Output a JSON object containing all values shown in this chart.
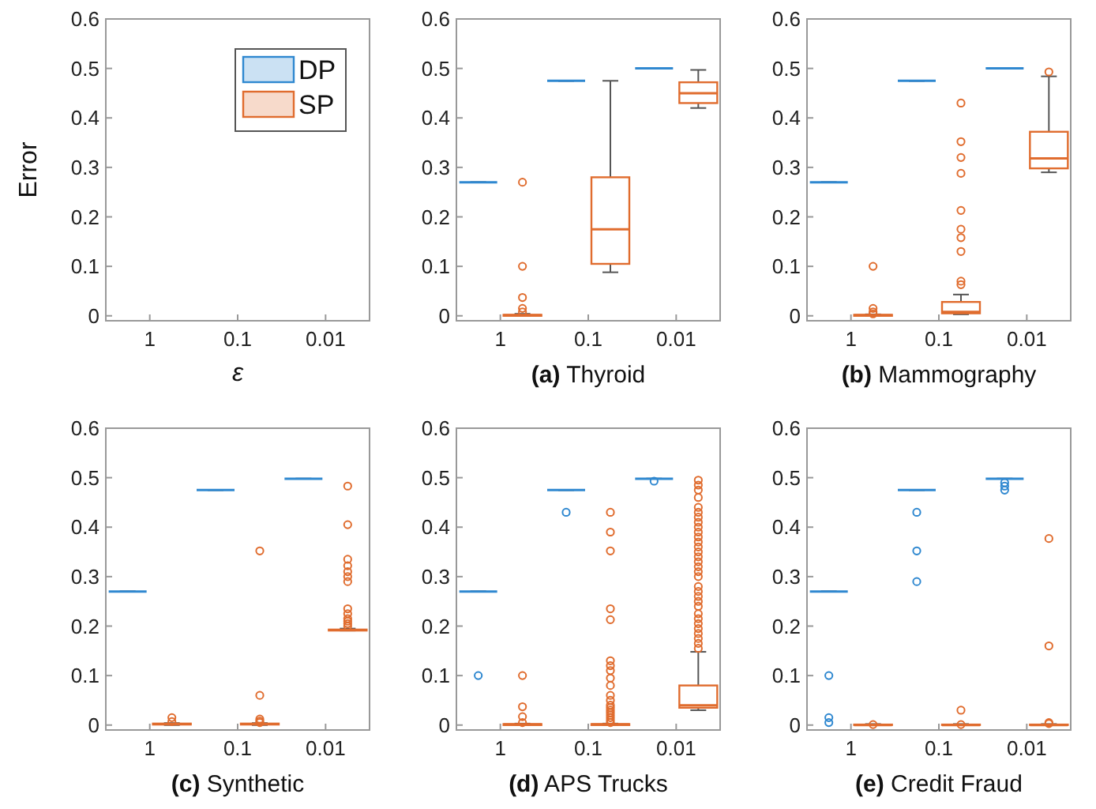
{
  "chart_data": [
    {
      "type": "box",
      "xlabel": "ε",
      "ylabel": "Error",
      "categories": [
        "1",
        "0.1",
        "0.01"
      ],
      "ylim": [
        -0.01,
        0.6
      ],
      "yticks": [
        0,
        0.1,
        0.2,
        0.3,
        0.4,
        0.5,
        0.6
      ],
      "legend": "top right",
      "series": [
        {
          "name": "DP",
          "color": "#2f88d0",
          "boxes": [
            null,
            null,
            null
          ]
        },
        {
          "name": "SP",
          "color": "#e06c2e",
          "boxes": [
            null,
            null,
            null
          ]
        }
      ]
    },
    {
      "type": "box",
      "title": "(a) Thyroid",
      "categories": [
        "1",
        "0.1",
        "0.01"
      ],
      "ylim": [
        -0.01,
        0.6
      ],
      "yticks": [
        0,
        0.1,
        0.2,
        0.3,
        0.4,
        0.5,
        0.6
      ],
      "series": [
        {
          "color": "#2f88d0",
          "boxes": [
            {
              "low": 0.27,
              "q1": 0.27,
              "median": 0.27,
              "q3": 0.27,
              "high": 0.27
            },
            {
              "low": 0.475,
              "q1": 0.475,
              "median": 0.475,
              "q3": 0.475,
              "high": 0.475
            },
            {
              "low": 0.5,
              "q1": 0.5,
              "median": 0.5,
              "q3": 0.5,
              "high": 0.5
            }
          ]
        },
        {
          "color": "#e06c2e",
          "boxes": [
            {
              "low": 0,
              "q1": 0,
              "median": 0.001,
              "q3": 0.002,
              "high": 0.004,
              "outliers": [
                0.008,
                0.015,
                0.037,
                0.1,
                0.27
              ]
            },
            {
              "low": 0.088,
              "q1": 0.105,
              "median": 0.175,
              "q3": 0.28,
              "high": 0.475
            },
            {
              "low": 0.42,
              "q1": 0.43,
              "median": 0.45,
              "q3": 0.472,
              "high": 0.497
            }
          ]
        }
      ]
    },
    {
      "type": "box",
      "title": "(b) Mammography",
      "categories": [
        "1",
        "0.1",
        "0.01"
      ],
      "ylim": [
        -0.01,
        0.6
      ],
      "yticks": [
        0,
        0.1,
        0.2,
        0.3,
        0.4,
        0.5,
        0.6
      ],
      "series": [
        {
          "color": "#2f88d0",
          "boxes": [
            {
              "low": 0.27,
              "q1": 0.27,
              "median": 0.27,
              "q3": 0.27,
              "high": 0.27
            },
            {
              "low": 0.475,
              "q1": 0.475,
              "median": 0.475,
              "q3": 0.475,
              "high": 0.475
            },
            {
              "low": 0.5,
              "q1": 0.5,
              "median": 0.5,
              "q3": 0.5,
              "high": 0.5
            }
          ]
        },
        {
          "color": "#e06c2e",
          "boxes": [
            {
              "low": 0,
              "q1": 0,
              "median": 0.001,
              "q3": 0.002,
              "high": 0.003,
              "outliers": [
                0.004,
                0.008,
                0.015,
                0.1
              ]
            },
            {
              "low": 0.003,
              "q1": 0.005,
              "median": 0.008,
              "q3": 0.028,
              "high": 0.043,
              "outliers": [
                0.063,
                0.07,
                0.13,
                0.158,
                0.175,
                0.213,
                0.288,
                0.32,
                0.352,
                0.43
              ]
            },
            {
              "low": 0.29,
              "q1": 0.298,
              "median": 0.318,
              "q3": 0.372,
              "high": 0.484,
              "outliers": [
                0.493
              ]
            }
          ]
        }
      ]
    },
    {
      "type": "box",
      "title": "(c) Synthetic",
      "categories": [
        "1",
        "0.1",
        "0.01"
      ],
      "ylim": [
        -0.01,
        0.6
      ],
      "yticks": [
        0,
        0.1,
        0.2,
        0.3,
        0.4,
        0.5,
        0.6
      ],
      "series": [
        {
          "color": "#2f88d0",
          "boxes": [
            {
              "low": 0.27,
              "q1": 0.27,
              "median": 0.27,
              "q3": 0.27,
              "high": 0.27
            },
            {
              "low": 0.475,
              "q1": 0.475,
              "median": 0.475,
              "q3": 0.475,
              "high": 0.475
            },
            {
              "low": 0.498,
              "q1": 0.498,
              "median": 0.498,
              "q3": 0.498,
              "high": 0.498
            }
          ]
        },
        {
          "color": "#e06c2e",
          "boxes": [
            {
              "low": 0,
              "q1": 0.001,
              "median": 0.002,
              "q3": 0.003,
              "high": 0.004,
              "outliers": [
                0.007,
                0.015
              ]
            },
            {
              "low": 0,
              "q1": 0.001,
              "median": 0.002,
              "q3": 0.003,
              "high": 0.004,
              "outliers": [
                0.005,
                0.008,
                0.012,
                0.06,
                0.352
              ]
            },
            {
              "low": 0.191,
              "q1": 0.191,
              "median": 0.192,
              "q3": 0.193,
              "high": 0.195,
              "outliers": [
                0.2,
                0.205,
                0.21,
                0.215,
                0.225,
                0.235,
                0.29,
                0.3,
                0.31,
                0.322,
                0.335,
                0.405,
                0.483
              ]
            }
          ]
        }
      ]
    },
    {
      "type": "box",
      "title": "(d) APS Trucks",
      "categories": [
        "1",
        "0.1",
        "0.01"
      ],
      "ylim": [
        -0.01,
        0.6
      ],
      "yticks": [
        0,
        0.1,
        0.2,
        0.3,
        0.4,
        0.5,
        0.6
      ],
      "series": [
        {
          "color": "#2f88d0",
          "boxes": [
            {
              "low": 0.27,
              "q1": 0.27,
              "median": 0.27,
              "q3": 0.27,
              "high": 0.27,
              "outliers": [
                0.1
              ]
            },
            {
              "low": 0.475,
              "q1": 0.475,
              "median": 0.475,
              "q3": 0.475,
              "high": 0.475,
              "outliers": [
                0.43
              ]
            },
            {
              "low": 0.498,
              "q1": 0.498,
              "median": 0.498,
              "q3": 0.498,
              "high": 0.498,
              "outliers": [
                0.493
              ]
            }
          ]
        },
        {
          "color": "#e06c2e",
          "boxes": [
            {
              "low": 0,
              "q1": 0,
              "median": 0.001,
              "q3": 0.002,
              "high": 0.003,
              "outliers": [
                0.005,
                0.017,
                0.037,
                0.1
              ]
            },
            {
              "low": 0,
              "q1": 0,
              "median": 0.001,
              "q3": 0.002,
              "high": 0.003,
              "outliers": [
                0.005,
                0.01,
                0.015,
                0.02,
                0.025,
                0.03,
                0.035,
                0.04,
                0.05,
                0.06,
                0.08,
                0.095,
                0.11,
                0.12,
                0.13,
                0.213,
                0.235,
                0.352,
                0.39,
                0.43
              ]
            },
            {
              "low": 0.03,
              "q1": 0.035,
              "median": 0.04,
              "q3": 0.08,
              "high": 0.148,
              "outliers": [
                0.155,
                0.165,
                0.175,
                0.185,
                0.195,
                0.205,
                0.215,
                0.225,
                0.24,
                0.25,
                0.26,
                0.27,
                0.28,
                0.3,
                0.31,
                0.32,
                0.33,
                0.34,
                0.35,
                0.36,
                0.37,
                0.38,
                0.39,
                0.4,
                0.41,
                0.42,
                0.43,
                0.44,
                0.46,
                0.475,
                0.485,
                0.495
              ]
            }
          ]
        }
      ]
    },
    {
      "type": "box",
      "title": "(e) Credit Fraud",
      "categories": [
        "1",
        "0.1",
        "0.01"
      ],
      "ylim": [
        -0.01,
        0.6
      ],
      "yticks": [
        0,
        0.1,
        0.2,
        0.3,
        0.4,
        0.5,
        0.6
      ],
      "series": [
        {
          "color": "#2f88d0",
          "boxes": [
            {
              "low": 0.27,
              "q1": 0.27,
              "median": 0.27,
              "q3": 0.27,
              "high": 0.27,
              "outliers": [
                0.005,
                0.015,
                0.1
              ]
            },
            {
              "low": 0.475,
              "q1": 0.475,
              "median": 0.475,
              "q3": 0.475,
              "high": 0.475,
              "outliers": [
                0.29,
                0.352,
                0.43
              ]
            },
            {
              "low": 0.498,
              "q1": 0.498,
              "median": 0.498,
              "q3": 0.498,
              "high": 0.498,
              "outliers": [
                0.475,
                0.483,
                0.49
              ]
            }
          ]
        },
        {
          "color": "#e06c2e",
          "boxes": [
            {
              "low": 0,
              "q1": 0,
              "median": 0,
              "q3": 0.001,
              "high": 0.002,
              "outliers": [
                0.001
              ]
            },
            {
              "low": 0,
              "q1": 0,
              "median": 0,
              "q3": 0.001,
              "high": 0.002,
              "outliers": [
                0.001,
                0.03
              ]
            },
            {
              "low": 0,
              "q1": 0,
              "median": 0,
              "q3": 0.001,
              "high": 0.002,
              "outliers": [
                0.003,
                0.005,
                0.16,
                0.377
              ]
            }
          ]
        }
      ]
    }
  ]
}
